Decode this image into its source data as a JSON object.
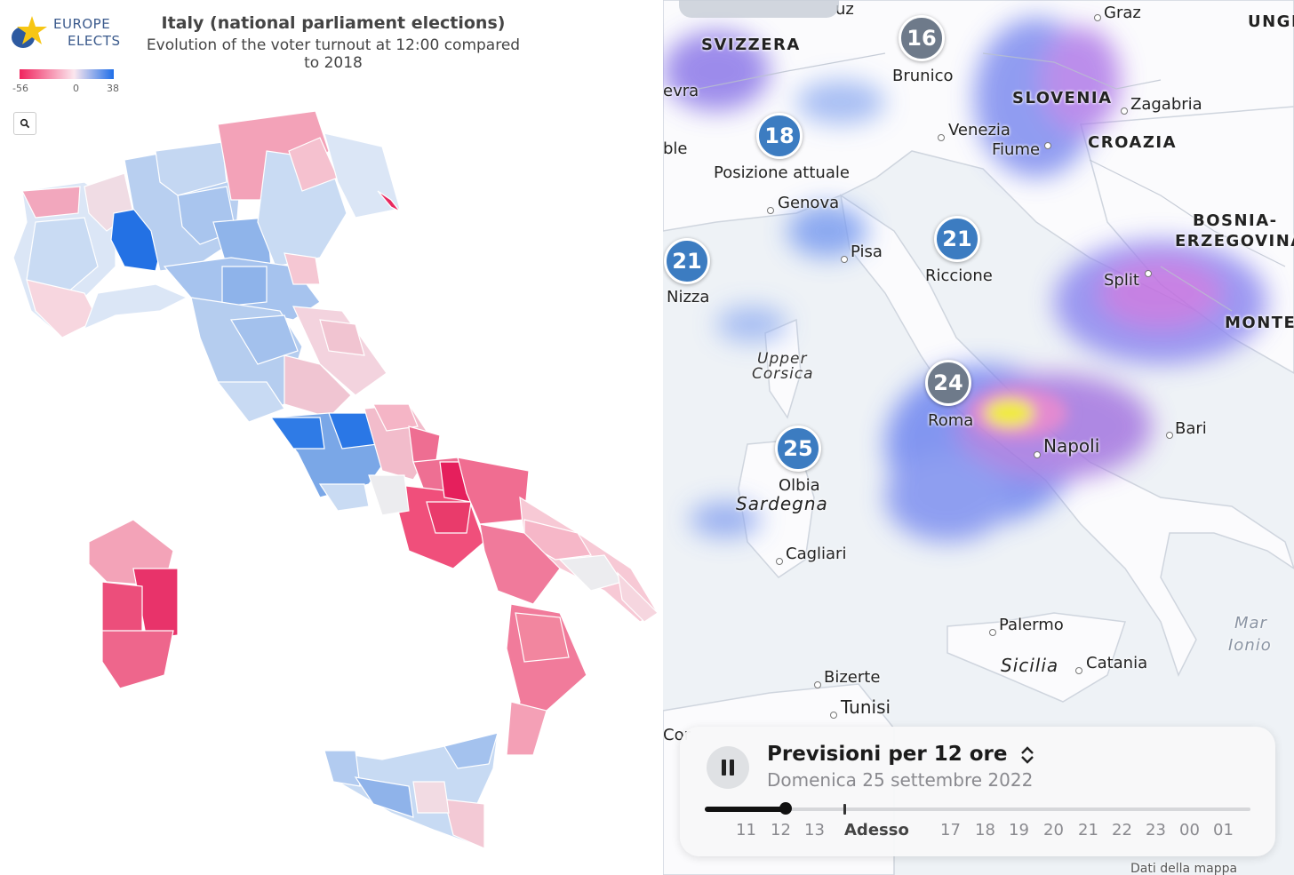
{
  "left_panel": {
    "logo": {
      "line1": "EUROPE",
      "line2": "ELECTS"
    },
    "title": "Italy (national parliament elections)",
    "subtitle": "Evolution of the voter turnout at 12:00 compared to 2018",
    "legend": {
      "min": "-56",
      "mid": "0",
      "max": "38",
      "color_min": "#f0245e",
      "color_mid": "#fbe7ee",
      "color_max": "#1f6ee8"
    },
    "search_icon": "magnifier-icon"
  },
  "right_panel": {
    "countries": {
      "svizzera": "SVIZZERA",
      "slovenia": "SLOVENIA",
      "croazia": "CROAZIA",
      "bosnia1": "BOSNIA-",
      "bosnia2": "ERZEGOVINA",
      "unghe": "UNGH",
      "monte": "MONTE"
    },
    "cities": {
      "graz": "Graz",
      "zagabria": "Zagabria",
      "brunico": "Brunico",
      "venezia": "Venezia",
      "fiume": "Fiume",
      "posizione": "Posizione attuale",
      "genova": "Genova",
      "pisa": "Pisa",
      "riccione": "Riccione",
      "nizza": "Nizza",
      "split": "Split",
      "roma": "Roma",
      "napoli": "Napoli",
      "bari": "Bari",
      "olbia": "Olbia",
      "cagliari": "Cagliari",
      "palermo": "Palermo",
      "catania": "Catania",
      "bizerte": "Bizerte",
      "tunisi": "Tunisi",
      "evra": "evra",
      "ble": "ble",
      "uz": "uz",
      "cor": "Cor"
    },
    "regions": {
      "upper_corsica_1": "Upper",
      "upper_corsica_2": "Corsica",
      "sardegna": "Sardegna",
      "sicilia": "Sicilia",
      "mar": "Mar",
      "ionio": "Ionio"
    },
    "badges": [
      "16",
      "18",
      "21",
      "21",
      "24",
      "25"
    ],
    "footer_link": "Dati della mappa",
    "forecast": {
      "title": "Previsioni per 12 ore",
      "date": "Domenica 25 settembre 2022",
      "ticks": [
        "11",
        "12",
        "13",
        "Adesso",
        "17",
        "18",
        "19",
        "20",
        "21",
        "22",
        "23",
        "00",
        "01"
      ]
    }
  }
}
